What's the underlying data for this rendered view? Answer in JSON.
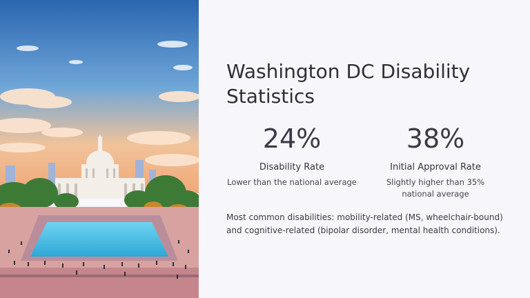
{
  "slide": {
    "title": "Washington DC Disability Statistics",
    "stats": [
      {
        "value": "24%",
        "label": "Disability Rate",
        "description": "Lower than the national average"
      },
      {
        "value": "38%",
        "label": "Initial Approval Rate",
        "description": "Slightly higher than 35% national average"
      }
    ],
    "note": "Most common disabilities: mobility-related (MS, wheelchair-bound) and cognitive-related (bipolar disorder, mental health conditions)."
  },
  "illustration": {
    "subject": "capitol-building-illustration",
    "colors": {
      "sky_top": "#2f6fb8",
      "sky_bottom": "#f3b07a",
      "pool": "#4fc3e6",
      "trees": "#3f7a3a",
      "plaza": "#c98a8a"
    }
  }
}
